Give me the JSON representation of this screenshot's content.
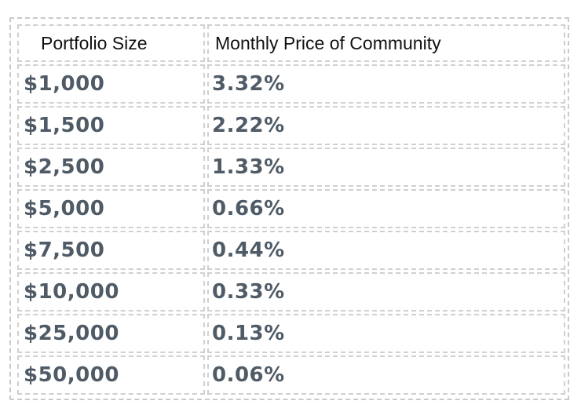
{
  "table": {
    "headers": [
      "Portfolio Size",
      "Monthly Price of Community"
    ],
    "rows": [
      [
        "$1,000",
        "3.32%"
      ],
      [
        "$1,500",
        "2.22%"
      ],
      [
        "$2,500",
        "1.33%"
      ],
      [
        "$5,000",
        "0.66%"
      ],
      [
        "$7,500",
        "0.44%"
      ],
      [
        "$10,000",
        "0.33%"
      ],
      [
        "$25,000",
        "0.13%"
      ],
      [
        "$50,000",
        "0.06%"
      ]
    ]
  }
}
